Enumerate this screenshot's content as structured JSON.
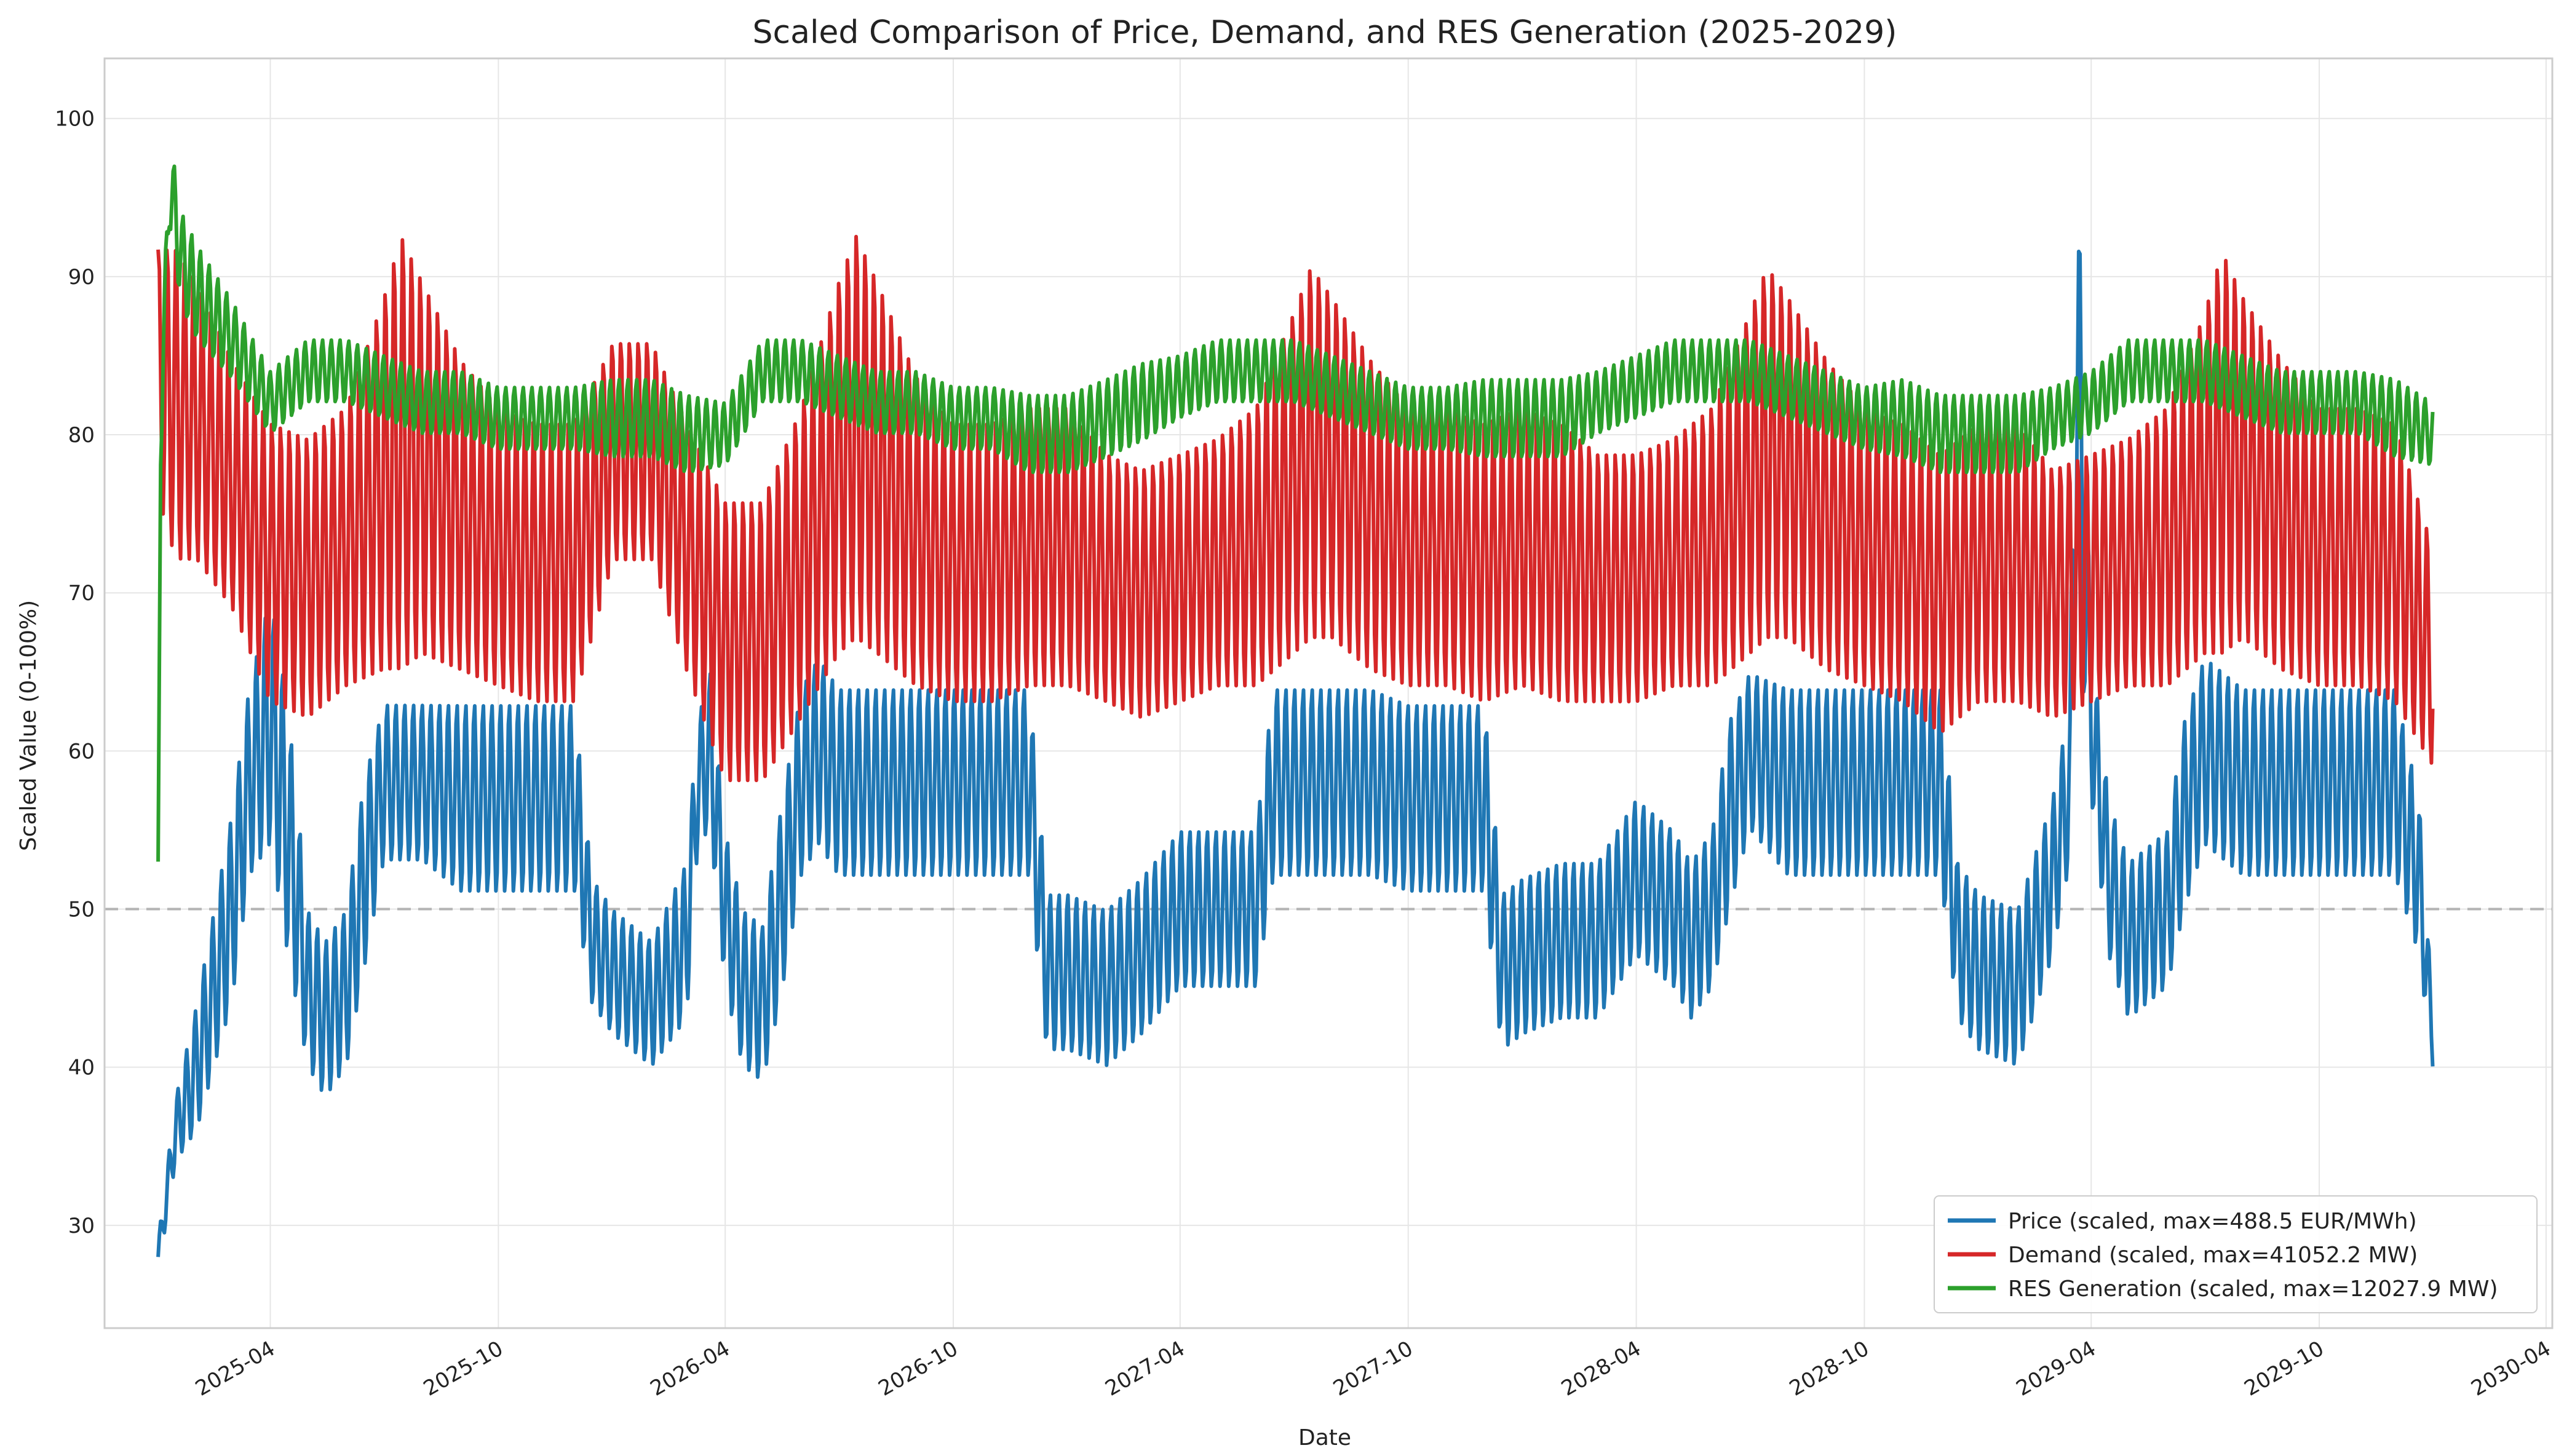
{
  "chart_data": {
    "type": "line",
    "title": "Scaled Comparison of Price, Demand, and RES Generation (2025-2029)",
    "xlabel": "Date",
    "ylabel": "Scaled Value (0-100%)",
    "xlim": [
      "2024-11-19",
      "2030-04-06"
    ],
    "ylim": [
      23.5,
      103.8
    ],
    "x_ticks": [
      "2025-04",
      "2025-10",
      "2026-04",
      "2026-10",
      "2027-04",
      "2027-10",
      "2028-04",
      "2028-10",
      "2029-04",
      "2029-10",
      "2030-04"
    ],
    "y_ticks": [
      30,
      40,
      50,
      60,
      70,
      80,
      90,
      100
    ],
    "grid": true,
    "reference_line": {
      "y": 50,
      "style": "dashed",
      "color": "#b3b3b3"
    },
    "legend_position": "bottom-right",
    "x_range": [
      "2025-01-01",
      "2029-12-31"
    ],
    "series": [
      {
        "name": "Price (scaled, max=488.5 EUR/MWh)",
        "color": "#1f77b4",
        "x": [
          "2025-01-01",
          "2025-01-15",
          "2025-02-01",
          "2025-02-15",
          "2025-03-01",
          "2025-03-15",
          "2025-04-01",
          "2025-04-15",
          "2025-05-01",
          "2025-05-15",
          "2025-06-01",
          "2025-06-15",
          "2025-07-01",
          "2025-08-01",
          "2025-09-01",
          "2025-10-01",
          "2025-11-01",
          "2025-12-01",
          "2025-12-15",
          "2026-01-01",
          "2026-02-01",
          "2026-03-01",
          "2026-03-10",
          "2026-03-20",
          "2026-04-01",
          "2026-04-15",
          "2026-05-01",
          "2026-05-15",
          "2026-06-01",
          "2026-06-15",
          "2026-07-01",
          "2026-08-01",
          "2026-09-01",
          "2026-10-01",
          "2026-11-01",
          "2026-12-01",
          "2026-12-15",
          "2027-01-01",
          "2027-02-01",
          "2027-03-01",
          "2027-04-01",
          "2027-05-01",
          "2027-06-01",
          "2027-06-15",
          "2027-07-01",
          "2027-08-01",
          "2027-09-01",
          "2027-10-01",
          "2027-11-01",
          "2027-12-01",
          "2027-12-15",
          "2028-01-01",
          "2028-02-01",
          "2028-03-01",
          "2028-04-01",
          "2028-05-01",
          "2028-05-15",
          "2028-06-01",
          "2028-06-15",
          "2028-07-01",
          "2028-08-01",
          "2028-09-01",
          "2028-10-01",
          "2028-11-01",
          "2028-12-01",
          "2028-12-15",
          "2029-01-01",
          "2029-02-01",
          "2029-03-01",
          "2029-03-15",
          "2029-03-20",
          "2029-04-01",
          "2029-04-15",
          "2029-05-01",
          "2029-06-01",
          "2029-06-15",
          "2029-07-01",
          "2029-08-01",
          "2029-09-01",
          "2029-10-01",
          "2029-11-01",
          "2029-12-01",
          "2029-12-20",
          "2029-12-31"
        ],
        "mean": [
          28,
          36,
          40,
          45,
          50,
          58,
          62,
          55,
          45,
          43,
          45,
          52,
          58,
          58,
          57,
          57,
          57,
          57,
          48,
          46,
          44,
          48,
          58,
          60,
          50,
          45,
          44,
          50,
          58,
          60,
          58,
          58,
          58,
          58,
          58,
          58,
          46,
          46,
          45,
          47,
          50,
          50,
          50,
          58,
          58,
          58,
          58,
          57,
          57,
          57,
          46,
          47,
          48,
          48,
          52,
          50,
          48,
          50,
          56,
          60,
          58,
          58,
          58,
          58,
          58,
          48,
          46,
          45,
          52,
          58,
          85,
          62,
          52,
          48,
          50,
          56,
          60,
          58,
          58,
          58,
          58,
          58,
          52,
          42
        ],
        "amp": [
          1,
          2,
          4,
          5,
          6,
          6,
          8,
          8,
          5,
          5,
          5,
          6,
          5,
          5,
          6,
          6,
          6,
          6,
          4,
          4,
          4,
          5,
          4,
          5,
          5,
          5,
          5,
          6,
          6,
          6,
          6,
          6,
          6,
          6,
          6,
          6,
          5,
          5,
          5,
          5,
          5,
          5,
          5,
          6,
          6,
          6,
          6,
          6,
          6,
          6,
          5,
          5,
          5,
          5,
          5,
          5,
          5,
          5,
          6,
          5,
          6,
          6,
          6,
          6,
          6,
          5,
          5,
          5,
          5,
          5,
          15,
          5,
          5,
          5,
          5,
          6,
          6,
          6,
          6,
          6,
          6,
          6,
          5,
          2
        ]
      },
      {
        "name": "Demand (scaled, max=41052.2 MW)",
        "color": "#d62728",
        "x": [
          "2025-01-01",
          "2025-01-15",
          "2025-02-01",
          "2025-03-01",
          "2025-04-01",
          "2025-05-01",
          "2025-06-01",
          "2025-07-01",
          "2025-07-15",
          "2025-08-01",
          "2025-09-01",
          "2025-10-01",
          "2025-11-01",
          "2025-12-01",
          "2026-01-01",
          "2026-02-01",
          "2026-03-01",
          "2026-04-01",
          "2026-05-01",
          "2026-06-01",
          "2026-07-01",
          "2026-07-15",
          "2026-08-01",
          "2026-09-01",
          "2026-10-01",
          "2026-11-01",
          "2026-12-01",
          "2027-01-01",
          "2027-02-01",
          "2027-03-01",
          "2027-04-01",
          "2027-05-01",
          "2027-06-01",
          "2027-07-01",
          "2027-07-15",
          "2027-08-01",
          "2027-09-01",
          "2027-10-01",
          "2027-11-01",
          "2027-12-01",
          "2028-01-01",
          "2028-02-01",
          "2028-03-01",
          "2028-04-01",
          "2028-05-01",
          "2028-06-01",
          "2028-07-01",
          "2028-07-15",
          "2028-08-01",
          "2028-09-01",
          "2028-10-01",
          "2028-11-01",
          "2028-12-01",
          "2029-01-01",
          "2029-02-01",
          "2029-03-01",
          "2029-04-01",
          "2029-05-01",
          "2029-06-01",
          "2029-07-01",
          "2029-07-15",
          "2029-08-01",
          "2029-09-01",
          "2029-10-01",
          "2029-11-01",
          "2029-12-01",
          "2029-12-31"
        ],
        "mean": [
          84,
          82,
          81,
          77,
          72,
          71,
          73,
          77,
          79,
          78,
          75,
          73,
          72,
          72,
          79,
          79,
          73,
          67,
          67,
          72,
          78,
          80,
          78,
          74,
          72,
          72,
          73,
          73,
          71,
          70,
          71,
          72,
          73,
          77,
          79,
          78,
          75,
          73,
          73,
          72,
          73,
          72,
          71,
          71,
          72,
          73,
          77,
          79,
          78,
          75,
          73,
          72,
          70,
          72,
          72,
          70,
          71,
          72,
          73,
          77,
          79,
          78,
          75,
          73,
          73,
          72,
          66
        ],
        "amp": [
          8,
          10,
          9,
          8,
          9,
          9,
          9,
          12,
          14,
          12,
          10,
          9,
          9,
          9,
          7,
          7,
          8,
          9,
          9,
          10,
          12,
          13,
          12,
          10,
          9,
          9,
          9,
          9,
          8,
          8,
          8,
          8,
          9,
          11,
          12,
          11,
          10,
          9,
          9,
          9,
          9,
          9,
          8,
          8,
          8,
          9,
          11,
          12,
          11,
          10,
          9,
          9,
          9,
          9,
          9,
          8,
          8,
          8,
          9,
          11,
          13,
          11,
          10,
          9,
          9,
          9,
          7
        ]
      },
      {
        "name": "RES Generation (scaled, max=12027.9 MW)",
        "color": "#2ca02c",
        "x": [
          "2025-01-01",
          "2025-01-03",
          "2025-01-10",
          "2025-01-20",
          "2025-02-01",
          "2025-03-01",
          "2025-04-01",
          "2025-05-01",
          "2025-06-01",
          "2025-07-01",
          "2025-08-01",
          "2025-09-01",
          "2025-10-01",
          "2025-11-01",
          "2025-12-01",
          "2026-01-01",
          "2026-02-01",
          "2026-03-01",
          "2026-04-01",
          "2026-05-01",
          "2026-06-01",
          "2026-07-01",
          "2026-08-01",
          "2026-09-01",
          "2026-10-01",
          "2026-11-01",
          "2026-12-01",
          "2027-01-01",
          "2027-02-01",
          "2027-03-01",
          "2027-04-01",
          "2027-05-01",
          "2027-06-01",
          "2027-07-01",
          "2027-08-01",
          "2027-09-01",
          "2027-10-01",
          "2027-11-01",
          "2027-12-01",
          "2028-01-01",
          "2028-02-01",
          "2028-03-01",
          "2028-04-01",
          "2028-05-01",
          "2028-06-01",
          "2028-07-01",
          "2028-08-01",
          "2028-09-01",
          "2028-10-01",
          "2028-11-01",
          "2028-12-01",
          "2029-01-01",
          "2029-02-01",
          "2029-03-01",
          "2029-04-01",
          "2029-05-01",
          "2029-06-01",
          "2029-07-01",
          "2029-08-01",
          "2029-09-01",
          "2029-10-01",
          "2029-11-01",
          "2029-12-01",
          "2029-12-31"
        ],
        "mean": [
          53,
          80,
          96,
          91,
          89,
          86,
          82,
          84,
          84,
          83,
          82,
          82,
          81,
          81,
          81,
          81,
          81,
          80,
          80,
          84,
          84,
          83,
          82,
          82,
          81,
          81,
          80,
          80,
          81,
          82,
          83,
          84,
          84,
          84,
          83,
          82,
          81,
          81,
          81,
          81,
          81,
          82,
          83,
          84,
          84,
          84,
          83,
          82,
          81,
          81,
          80,
          80,
          80,
          81,
          82,
          84,
          84,
          84,
          83,
          82,
          82,
          82,
          81,
          80
        ],
        "amp": [
          0,
          2,
          3,
          3,
          3,
          2.5,
          2,
          2,
          2,
          2,
          2,
          2,
          2,
          2,
          2,
          2.5,
          2.5,
          2.5,
          2,
          2,
          2,
          2,
          2,
          2,
          2,
          2,
          2.5,
          2.5,
          2.5,
          2.5,
          2,
          2,
          2,
          2,
          2,
          2,
          2,
          2,
          2.5,
          2.5,
          2.5,
          2,
          2,
          2,
          2,
          2,
          2,
          2,
          2,
          2.5,
          2.5,
          2.5,
          2.5,
          2,
          2,
          2,
          2,
          2,
          2,
          2,
          2,
          2,
          2.5,
          2
        ]
      }
    ]
  }
}
